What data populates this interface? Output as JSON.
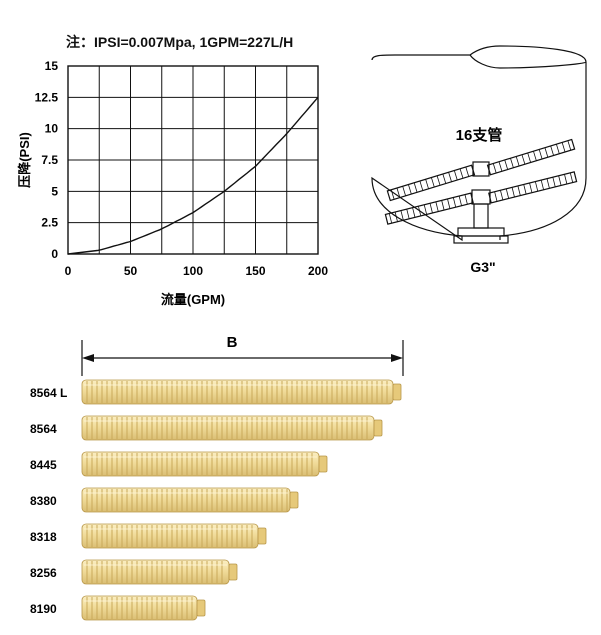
{
  "note": "注：IPSI=0.007Mpa, 1GPM=227L/H",
  "colors": {
    "ink": "#111111",
    "filter_body": "#f1dc9a",
    "filter_ridge": "#d6b868",
    "filter_edge": "#b8974a",
    "filter_cap": "#e6c97a"
  },
  "chart_data": {
    "type": "line",
    "xlabel": "流量(GPM)",
    "ylabel": "压降(PSI)",
    "x_ticks": [
      "0",
      "50",
      "100",
      "150",
      "200"
    ],
    "y_ticks": [
      "0",
      "2.5",
      "5",
      "7.5",
      "10",
      "12.5",
      "15"
    ],
    "xlim": [
      0,
      200
    ],
    "ylim": [
      0,
      15
    ],
    "grid": true,
    "series": [
      {
        "x": [
          0,
          25,
          50,
          75,
          100,
          125,
          150,
          175,
          200
        ],
        "y": [
          0,
          0.3,
          1.0,
          2.0,
          3.3,
          5.0,
          7.0,
          9.6,
          12.5
        ]
      }
    ]
  },
  "tank_diagram": {
    "laterals_label": "16支管",
    "connection_label": "G3\""
  },
  "dimension_label": "B",
  "filters": [
    {
      "model": "8564 L",
      "rel_length": 1.0
    },
    {
      "model": "8564",
      "rel_length": 0.94
    },
    {
      "model": "8445",
      "rel_length": 0.77
    },
    {
      "model": "8380",
      "rel_length": 0.68
    },
    {
      "model": "8318",
      "rel_length": 0.58
    },
    {
      "model": "8256",
      "rel_length": 0.49
    },
    {
      "model": "8190",
      "rel_length": 0.39
    }
  ]
}
